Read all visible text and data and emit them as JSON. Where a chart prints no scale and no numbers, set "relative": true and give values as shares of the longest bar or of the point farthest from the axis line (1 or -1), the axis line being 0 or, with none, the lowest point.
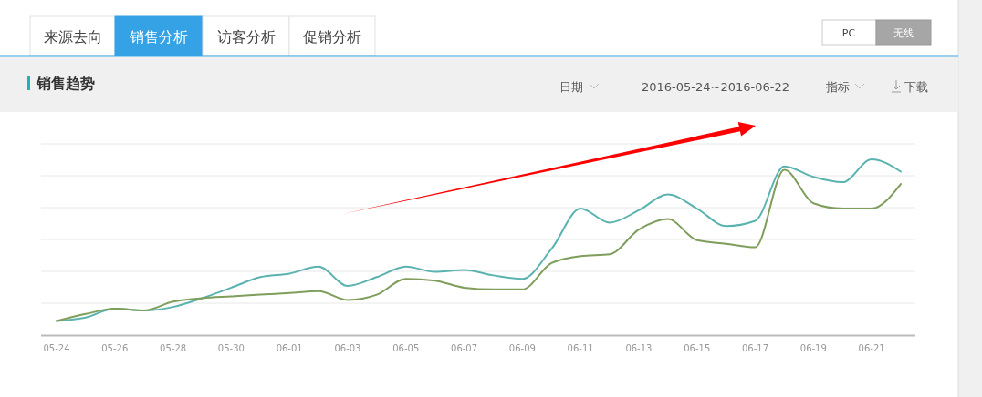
{
  "chart_data": {
    "type": "line",
    "title": "销售趋势",
    "annotations": [
      "来源去向",
      "销售分析",
      "访客分析",
      "促销分析",
      "PC",
      "无线",
      "日期",
      "2016-05-24~2016-06-22",
      "指标",
      "下载"
    ],
    "categories": [
      "05-24",
      null,
      "05-26",
      null,
      "05-28",
      null,
      "05-30",
      null,
      "06-01",
      null,
      "06-03",
      null,
      "06-05",
      null,
      "06-07",
      null,
      "06-09",
      null,
      "06-11",
      null,
      "06-13",
      null,
      "06-15",
      null,
      "06-17",
      null,
      "06-19",
      null,
      "06-21",
      null
    ],
    "relative": true,
    "grid": "y",
    "series": [
      {
        "color": "#5bb3b0",
        "values": [
          0.08,
          0.1,
          0.15,
          0.14,
          0.16,
          0.21,
          0.27,
          0.33,
          0.35,
          0.39,
          0.28,
          0.33,
          0.39,
          0.36,
          0.37,
          0.34,
          0.32,
          0.49,
          0.72,
          0.64,
          0.71,
          0.8,
          0.72,
          0.62,
          0.65,
          0.96,
          0.9,
          0.87,
          1,
          0.93
        ]
      },
      {
        "color": "#7f9e5c",
        "values": [
          0.08,
          0.12,
          0.15,
          0.14,
          0.19,
          0.21,
          0.22,
          0.23,
          0.24,
          0.25,
          0.2,
          0.23,
          0.32,
          0.31,
          0.27,
          0.26,
          0.26,
          0.41,
          0.45,
          0.46,
          0.6,
          0.66,
          0.54,
          0.52,
          0.5,
          0.94,
          0.75,
          0.72,
          0.72,
          0.86
        ]
      }
    ]
  }
}
